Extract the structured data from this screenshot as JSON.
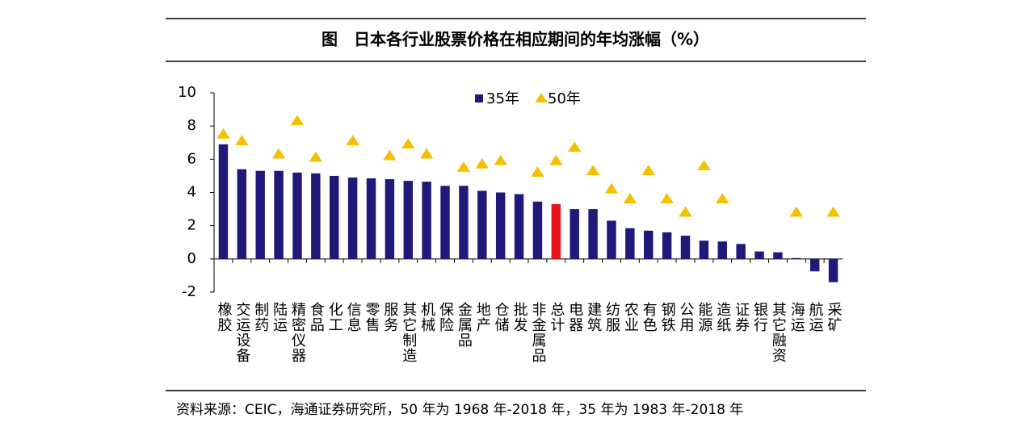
{
  "chart_data": {
    "type": "bar_marker",
    "title": "图　日本各行业股票价格在相应期间的年均涨幅（%）",
    "source": "资料来源：CEIC，海通证券研究所，50 年为 1968 年-2018 年，35 年为 1983 年-2018 年",
    "categories": [
      "橡胶",
      "交运设备",
      "制药",
      "陆运",
      "精密仪器",
      "食品",
      "化工",
      "信息",
      "零售",
      "服务",
      "其它制造",
      "机械",
      "保险",
      "金属品",
      "地产",
      "仓储",
      "批发",
      "非金属品",
      "总计",
      "电器",
      "建筑",
      "纺服",
      "农业",
      "有色",
      "钢铁",
      "公用",
      "能源",
      "造纸",
      "证券",
      "银行",
      "其它融资",
      "海运",
      "航运",
      "采矿"
    ],
    "series": [
      {
        "name": "35年",
        "color": "#1f1a7a",
        "marker": "bar",
        "values": [
          6.9,
          5.4,
          5.3,
          5.3,
          5.2,
          5.15,
          5.0,
          4.9,
          4.85,
          4.8,
          4.7,
          4.65,
          4.4,
          4.4,
          4.1,
          4.0,
          3.9,
          3.45,
          3.3,
          3.0,
          3.0,
          2.3,
          1.85,
          1.7,
          1.6,
          1.4,
          1.1,
          1.05,
          0.9,
          0.45,
          0.4,
          0.05,
          -0.75,
          -1.4
        ],
        "highlight": {
          "index": 18,
          "color": "#e8141b"
        }
      },
      {
        "name": "50年",
        "color": "#f5c000",
        "marker": "triangle",
        "values": [
          7.5,
          7.1,
          null,
          6.3,
          8.3,
          6.1,
          null,
          7.1,
          null,
          6.2,
          6.9,
          6.3,
          null,
          5.5,
          5.7,
          5.9,
          null,
          5.2,
          5.9,
          6.7,
          5.3,
          4.2,
          3.6,
          5.3,
          3.6,
          2.8,
          5.6,
          3.6,
          null,
          null,
          null,
          2.8,
          null,
          2.8
        ]
      }
    ],
    "ylim": [
      -2,
      10
    ],
    "yticks": [
      -2,
      0,
      2,
      4,
      6,
      8,
      10
    ],
    "grid": false,
    "legend": "top"
  }
}
